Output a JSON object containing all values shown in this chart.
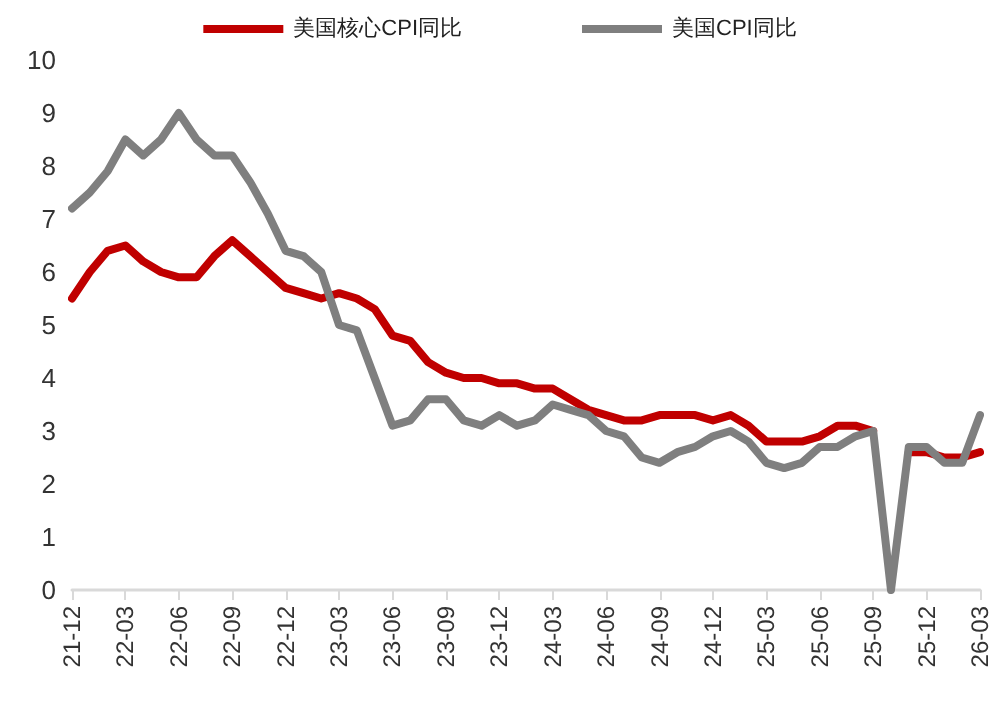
{
  "chart_data": {
    "type": "line",
    "categories": [
      "21-12",
      null,
      null,
      "22-03",
      null,
      null,
      "22-06",
      null,
      null,
      "22-09",
      null,
      null,
      "22-12",
      null,
      null,
      "23-03",
      null,
      null,
      "23-06",
      null,
      null,
      "23-09",
      null,
      null,
      "23-12",
      null,
      null,
      "24-03",
      null,
      null,
      "24-06",
      null,
      null,
      "24-09",
      null,
      null,
      "24-12",
      null,
      null,
      "25-03",
      null,
      null,
      "25-06",
      null,
      null,
      "25-09",
      null,
      null,
      "25-12",
      null,
      null,
      "26-03"
    ],
    "series": [
      {
        "name": "美国核心CPI同比",
        "color": "#c00000",
        "values": [
          5.5,
          6.0,
          6.4,
          6.5,
          6.2,
          6.0,
          5.9,
          5.9,
          6.3,
          6.6,
          6.3,
          6.0,
          5.7,
          5.6,
          5.5,
          5.6,
          5.5,
          5.3,
          4.8,
          4.7,
          4.3,
          4.1,
          4.0,
          4.0,
          3.9,
          3.9,
          3.8,
          3.8,
          3.6,
          3.4,
          3.3,
          3.2,
          3.2,
          3.3,
          3.3,
          3.3,
          3.2,
          3.3,
          3.1,
          2.8,
          2.8,
          2.8,
          2.9,
          3.1,
          3.1,
          3.0,
          null,
          2.6,
          2.6,
          2.5,
          2.5,
          2.6
        ]
      },
      {
        "name": "美国CPI同比",
        "color": "#7f7f7f",
        "values": [
          7.2,
          7.5,
          7.9,
          8.5,
          8.2,
          8.5,
          9.0,
          8.5,
          8.2,
          8.2,
          7.7,
          7.1,
          6.4,
          6.3,
          6.0,
          5.0,
          4.9,
          4.0,
          3.1,
          3.2,
          3.6,
          3.6,
          3.2,
          3.1,
          3.3,
          3.1,
          3.2,
          3.5,
          3.4,
          3.3,
          3.0,
          2.9,
          2.5,
          2.4,
          2.6,
          2.7,
          2.9,
          3.0,
          2.8,
          2.4,
          2.3,
          2.4,
          2.7,
          2.7,
          2.9,
          3.0,
          0,
          2.7,
          2.7,
          2.4,
          2.4,
          3.3
        ]
      }
    ],
    "ylim": [
      0,
      10
    ],
    "yticks": [
      0,
      1,
      2,
      3,
      4,
      5,
      6,
      7,
      8,
      9,
      10
    ],
    "grid": false,
    "legend": "top",
    "marker": "none",
    "line_style": "solid"
  }
}
